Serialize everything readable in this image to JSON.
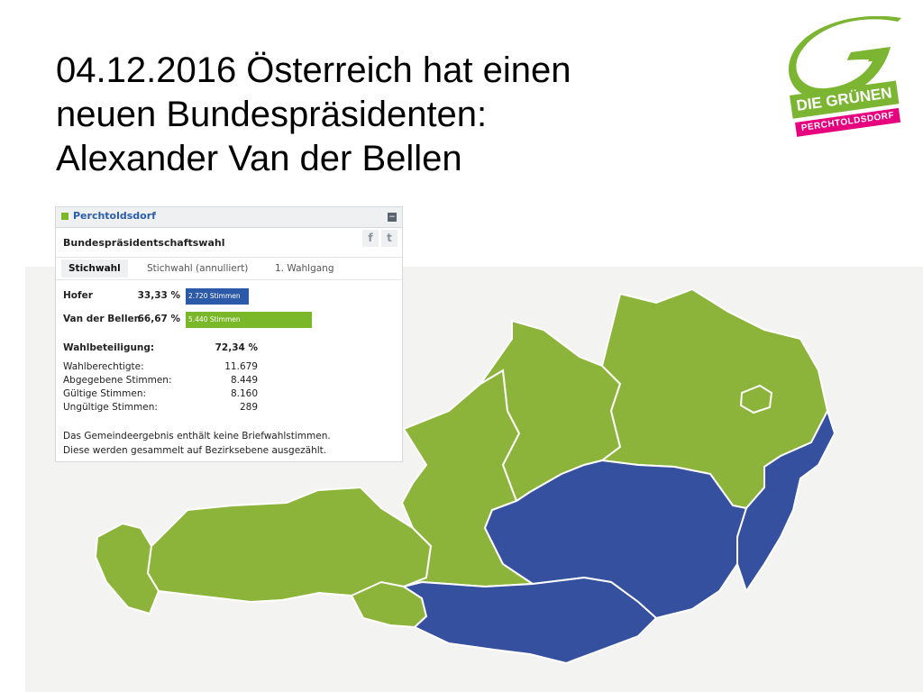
{
  "slide": {
    "title_lines": [
      "04.12.2016 Österreich hat einen",
      "neuen Bundespräsidenten:",
      "Alexander Van der Bellen"
    ]
  },
  "logo": {
    "icon": "green-g-brushstroke-icon",
    "name": "DIE GRÜNEN",
    "sub": "PERCHTOLDSDORF",
    "colors": {
      "green": "#7bb531",
      "magenta": "#e6007e"
    }
  },
  "widget": {
    "header": "Perchtoldsdorf",
    "collapse_icon": "minus-icon",
    "subtitle": "Bundespräsidentschaftswahl",
    "share": [
      {
        "name": "facebook-icon",
        "glyph": "f"
      },
      {
        "name": "twitter-icon",
        "glyph": "t"
      }
    ],
    "tabs": [
      {
        "label": "Stichwahl",
        "active": true
      },
      {
        "label": "Stichwahl (annulliert)",
        "active": false
      },
      {
        "label": "1. Wahlgang",
        "active": false
      }
    ],
    "candidates": [
      {
        "name": "Hofer",
        "percent": "33,33 %",
        "bar_label": "2.720 Stimmen",
        "share": 0.3333,
        "color": "#2d5aa8"
      },
      {
        "name": "Van der Bellen",
        "percent": "66,67 %",
        "bar_label": "5.440 Stimmen",
        "share": 0.6667,
        "color": "#7ab829"
      }
    ],
    "turnout": {
      "label": "Wahlbeteiligung:",
      "value": "72,34 %"
    },
    "stats": [
      {
        "label": "Wahlberechtigte:",
        "value": "11.679"
      },
      {
        "label": "Abgegebene Stimmen:",
        "value": "8.449"
      },
      {
        "label": "Gültige Stimmen:",
        "value": "8.160"
      },
      {
        "label": "Ungültige Stimmen:",
        "value": "289"
      }
    ],
    "note_lines": [
      "Das Gemeindeergebnis enthält keine Briefwahlstimmen.",
      "Diese werden gesammelt auf Bezirksebene ausgezählt."
    ]
  },
  "map": {
    "colors": {
      "green_states": "#8db43a",
      "blue_states": "#35509f",
      "border": "#ffffff",
      "background": "#f3f4f1"
    },
    "regions": [
      {
        "name": "Vorarlberg",
        "winner": "Van der Bellen"
      },
      {
        "name": "Tirol",
        "winner": "Van der Bellen"
      },
      {
        "name": "Osttirol",
        "winner": "Van der Bellen"
      },
      {
        "name": "Salzburg",
        "winner": "Van der Bellen"
      },
      {
        "name": "Oberösterreich",
        "winner": "Van der Bellen"
      },
      {
        "name": "Niederösterreich",
        "winner": "Van der Bellen"
      },
      {
        "name": "Wien",
        "winner": "Van der Bellen"
      },
      {
        "name": "Steiermark",
        "winner": "Hofer"
      },
      {
        "name": "Kärnten",
        "winner": "Hofer"
      },
      {
        "name": "Burgenland",
        "winner": "Hofer"
      }
    ]
  }
}
